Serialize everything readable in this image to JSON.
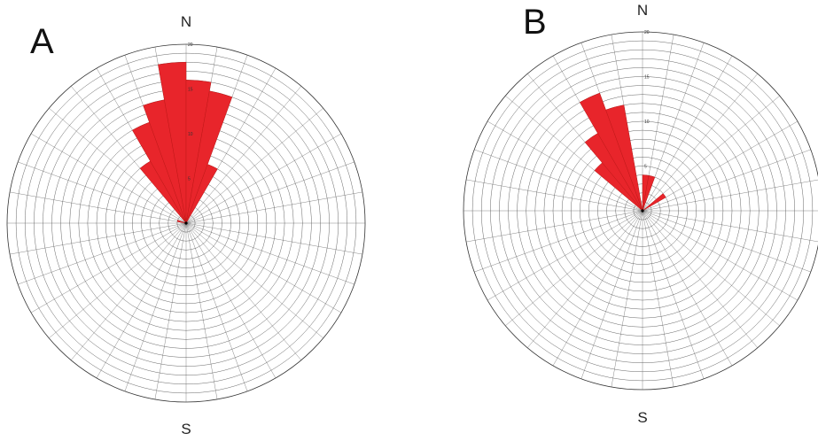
{
  "colors": {
    "petal": "#e8252b",
    "grid": "#555555",
    "background": "#ffffff"
  },
  "chart_data": [
    {
      "type": "rose",
      "panel_label": "A",
      "north_label": "N",
      "south_label": "S",
      "radial_ticks": [
        "5",
        "10",
        "15",
        "20"
      ],
      "rmax": 20,
      "rings": 20,
      "bin_width_deg": 10,
      "bins": [
        {
          "from": 280,
          "to": 290,
          "value": 1
        },
        {
          "from": 320,
          "to": 330,
          "value": 8
        },
        {
          "from": 330,
          "to": 340,
          "value": 12
        },
        {
          "from": 340,
          "to": 350,
          "value": 14
        },
        {
          "from": 350,
          "to": 360,
          "value": 18
        },
        {
          "from": 0,
          "to": 10,
          "value": 16
        },
        {
          "from": 10,
          "to": 20,
          "value": 15
        },
        {
          "from": 20,
          "to": 30,
          "value": 7
        }
      ]
    },
    {
      "type": "rose",
      "panel_label": "B",
      "north_label": "N",
      "south_label": "S",
      "radial_ticks": [
        "5",
        "10",
        "15",
        "20"
      ],
      "rmax": 20,
      "rings": 20,
      "bin_width_deg": 10,
      "bins": [
        {
          "from": 310,
          "to": 320,
          "value": 7
        },
        {
          "from": 320,
          "to": 330,
          "value": 10
        },
        {
          "from": 330,
          "to": 340,
          "value": 14
        },
        {
          "from": 340,
          "to": 350,
          "value": 12
        },
        {
          "from": 0,
          "to": 10,
          "value": 4
        },
        {
          "from": 10,
          "to": 20,
          "value": 4
        },
        {
          "from": 50,
          "to": 60,
          "value": 3
        }
      ]
    }
  ]
}
